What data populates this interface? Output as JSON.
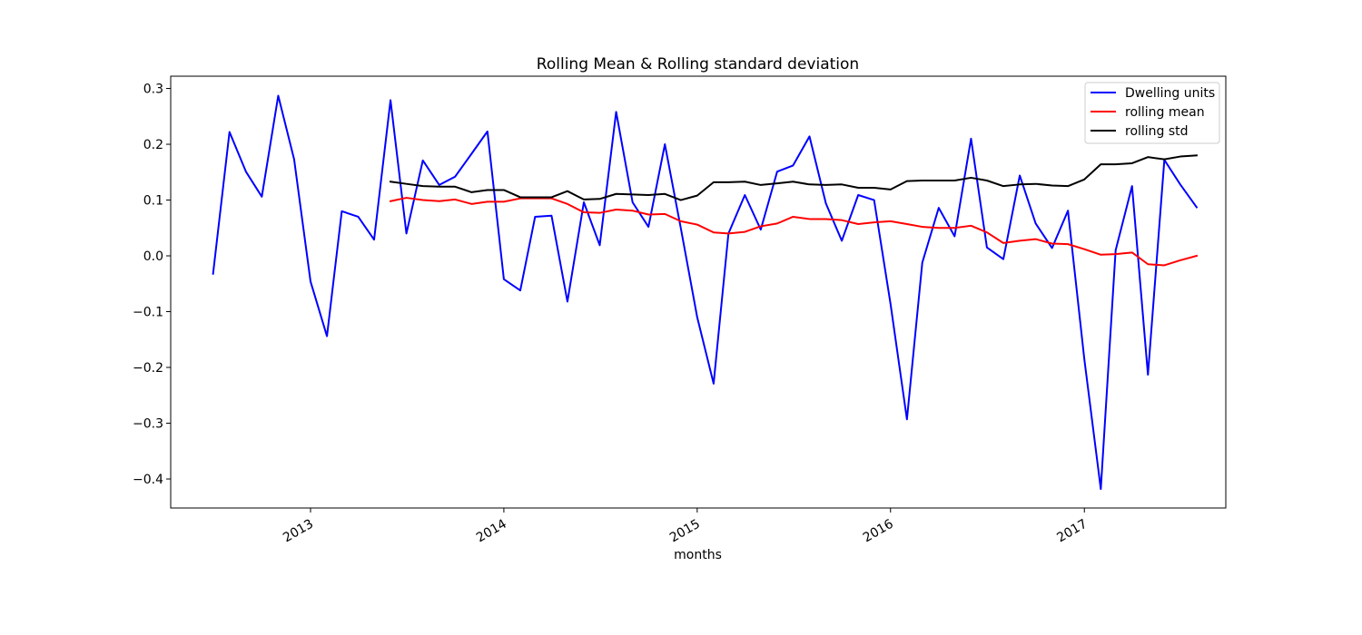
{
  "chart_data": {
    "type": "line",
    "title": "Rolling Mean & Rolling standard deviation",
    "xlabel": "months",
    "ylabel": "",
    "x_is_date": true,
    "xlim": [
      "2012-04-12",
      "2017-09-25"
    ],
    "ylim": [
      -0.452,
      0.322
    ],
    "yticks": [
      -0.4,
      -0.3,
      -0.2,
      -0.1,
      0.0,
      0.1,
      0.2,
      0.3
    ],
    "ytick_labels": [
      "−0.4",
      "−0.3",
      "−0.2",
      "−0.1",
      "0.0",
      "0.1",
      "0.2",
      "0.3"
    ],
    "xticks": [
      "2013-01-01",
      "2014-01-01",
      "2015-01-01",
      "2016-01-01",
      "2017-01-01"
    ],
    "xtick_labels": [
      "2013",
      "2014",
      "2015",
      "2016",
      "2017"
    ],
    "grid": false,
    "legend_position": "top-right",
    "x": [
      "2012-07-01",
      "2012-08-01",
      "2012-09-01",
      "2012-10-01",
      "2012-11-01",
      "2012-12-01",
      "2013-01-01",
      "2013-02-01",
      "2013-03-01",
      "2013-04-01",
      "2013-05-01",
      "2013-06-01",
      "2013-07-01",
      "2013-08-01",
      "2013-09-01",
      "2013-10-01",
      "2013-11-01",
      "2013-12-01",
      "2014-01-01",
      "2014-02-01",
      "2014-03-01",
      "2014-04-01",
      "2014-05-01",
      "2014-06-01",
      "2014-07-01",
      "2014-08-01",
      "2014-09-01",
      "2014-10-01",
      "2014-11-01",
      "2014-12-01",
      "2015-01-01",
      "2015-02-01",
      "2015-03-01",
      "2015-04-01",
      "2015-05-01",
      "2015-06-01",
      "2015-07-01",
      "2015-08-01",
      "2015-09-01",
      "2015-10-01",
      "2015-11-01",
      "2015-12-01",
      "2016-01-01",
      "2016-02-01",
      "2016-03-01",
      "2016-04-01",
      "2016-05-01",
      "2016-06-01",
      "2016-07-01",
      "2016-08-01",
      "2016-09-01",
      "2016-10-01",
      "2016-11-01",
      "2016-12-01",
      "2017-01-01",
      "2017-02-01",
      "2017-03-01",
      "2017-04-01",
      "2017-05-01",
      "2017-06-01",
      "2017-07-01",
      "2017-08-01"
    ],
    "series": [
      {
        "name": "Dwelling units",
        "color": "#0000ff",
        "values": [
          -0.032,
          0.222,
          0.151,
          0.106,
          0.287,
          0.173,
          -0.046,
          -0.144,
          0.08,
          0.07,
          0.029,
          0.279,
          0.04,
          0.171,
          0.127,
          0.142,
          0.183,
          0.223,
          -0.042,
          -0.062,
          0.07,
          0.072,
          -0.082,
          0.096,
          0.019,
          0.258,
          0.096,
          0.052,
          0.2,
          0.05,
          -0.11,
          -0.229,
          0.04,
          0.109,
          0.047,
          0.151,
          0.162,
          0.214,
          0.094,
          0.027,
          0.109,
          0.1,
          -0.086,
          -0.293,
          -0.012,
          0.086,
          0.035,
          0.21,
          0.015,
          -0.006,
          0.144,
          0.058,
          0.014,
          0.081,
          -0.186,
          -0.418,
          0.01,
          0.125,
          -0.213,
          0.172,
          0.128,
          0.087
        ]
      },
      {
        "name": "rolling mean",
        "color": "#ff0000",
        "values": [
          null,
          null,
          null,
          null,
          null,
          null,
          null,
          null,
          null,
          null,
          null,
          0.098,
          0.104,
          0.1,
          0.098,
          0.101,
          0.093,
          0.097,
          0.097,
          0.103,
          0.103,
          0.103,
          0.093,
          0.078,
          0.077,
          0.083,
          0.081,
          0.074,
          0.075,
          0.062,
          0.056,
          0.042,
          0.04,
          0.043,
          0.053,
          0.058,
          0.07,
          0.066,
          0.066,
          0.064,
          0.057,
          0.06,
          0.062,
          0.057,
          0.052,
          0.05,
          0.05,
          0.054,
          0.042,
          0.023,
          0.027,
          0.03,
          0.022,
          0.021,
          0.012,
          0.002,
          0.003,
          0.006,
          -0.015,
          -0.017,
          -0.008,
          0.0
        ]
      },
      {
        "name": "rolling std",
        "color": "#000000",
        "values": [
          null,
          null,
          null,
          null,
          null,
          null,
          null,
          null,
          null,
          null,
          null,
          0.133,
          0.129,
          0.125,
          0.124,
          0.124,
          0.114,
          0.118,
          0.118,
          0.105,
          0.105,
          0.105,
          0.116,
          0.101,
          0.102,
          0.111,
          0.11,
          0.109,
          0.111,
          0.1,
          0.108,
          0.132,
          0.132,
          0.133,
          0.127,
          0.13,
          0.133,
          0.128,
          0.127,
          0.128,
          0.122,
          0.122,
          0.119,
          0.134,
          0.135,
          0.135,
          0.135,
          0.14,
          0.135,
          0.125,
          0.128,
          0.129,
          0.126,
          0.125,
          0.137,
          0.164,
          0.164,
          0.166,
          0.177,
          0.173,
          0.178,
          0.18
        ]
      }
    ]
  }
}
